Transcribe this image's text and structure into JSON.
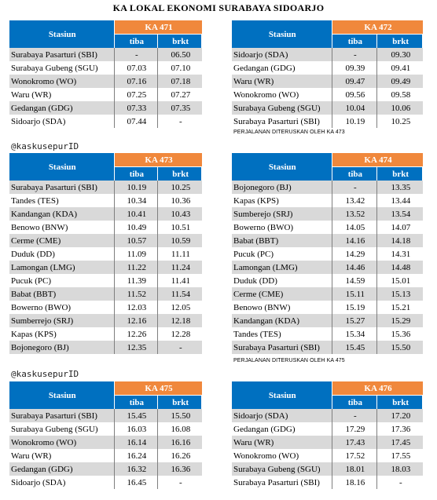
{
  "title": "KA LOKAL EKONOMI SURABAYA SIDOARJO",
  "watermarks": [
    "@kaskusepurID",
    "@kaskusepurID"
  ],
  "tables": [
    {
      "train": "KA 471",
      "station_header": "Stasiun",
      "arr_header": "tiba",
      "dep_header": "brkt",
      "rows": [
        {
          "station": "Surabaya Pasarturi (SBI)",
          "arr": "-",
          "dep": "06.50"
        },
        {
          "station": "Surabaya Gubeng (SGU)",
          "arr": "07.03",
          "dep": "07.10"
        },
        {
          "station": "Wonokromo (WO)",
          "arr": "07.16",
          "dep": "07.18"
        },
        {
          "station": "Waru (WR)",
          "arr": "07.25",
          "dep": "07.27"
        },
        {
          "station": "Gedangan (GDG)",
          "arr": "07.33",
          "dep": "07.35"
        },
        {
          "station": "Sidoarjo (SDA)",
          "arr": "07.44",
          "dep": "-"
        }
      ]
    },
    {
      "train": "KA 472",
      "station_header": "Stasiun",
      "arr_header": "tiba",
      "dep_header": "brkt",
      "rows": [
        {
          "station": "Sidoarjo (SDA)",
          "arr": "-",
          "dep": "09.30"
        },
        {
          "station": "Gedangan (GDG)",
          "arr": "09.39",
          "dep": "09.41"
        },
        {
          "station": "Waru (WR)",
          "arr": "09.47",
          "dep": "09.49"
        },
        {
          "station": "Wonokromo (WO)",
          "arr": "09.56",
          "dep": "09.58"
        },
        {
          "station": "Surabaya Gubeng (SGU)",
          "arr": "10.04",
          "dep": "10.06"
        },
        {
          "station": "Surabaya Pasarturi (SBI)",
          "arr": "10.19",
          "dep": "10.25"
        }
      ],
      "note": "PERJALANAN DITERUSKAN OLEH KA 473"
    },
    {
      "train": "KA 473",
      "station_header": "Stasiun",
      "arr_header": "tiba",
      "dep_header": "brkt",
      "rows": [
        {
          "station": "Surabaya Pasarturi (SBI)",
          "arr": "10.19",
          "dep": "10.25"
        },
        {
          "station": "Tandes (TES)",
          "arr": "10.34",
          "dep": "10.36"
        },
        {
          "station": "Kandangan (KDA)",
          "arr": "10.41",
          "dep": "10.43"
        },
        {
          "station": "Benowo (BNW)",
          "arr": "10.49",
          "dep": "10.51"
        },
        {
          "station": "Cerme (CME)",
          "arr": "10.57",
          "dep": "10.59"
        },
        {
          "station": "Duduk (DD)",
          "arr": "11.09",
          "dep": "11.11"
        },
        {
          "station": "Lamongan (LMG)",
          "arr": "11.22",
          "dep": "11.24"
        },
        {
          "station": "Pucuk (PC)",
          "arr": "11.39",
          "dep": "11.41"
        },
        {
          "station": "Babat (BBT)",
          "arr": "11.52",
          "dep": "11.54"
        },
        {
          "station": "Bowerno (BWO)",
          "arr": "12.03",
          "dep": "12.05"
        },
        {
          "station": "Sumberrejo (SRJ)",
          "arr": "12.16",
          "dep": "12.18"
        },
        {
          "station": "Kapas (KPS)",
          "arr": "12.26",
          "dep": "12.28"
        },
        {
          "station": "Bojonegoro (BJ)",
          "arr": "12.35",
          "dep": "-"
        }
      ]
    },
    {
      "train": "KA 474",
      "station_header": "Stasiun",
      "arr_header": "tiba",
      "dep_header": "brkt",
      "rows": [
        {
          "station": "Bojonegoro (BJ)",
          "arr": "-",
          "dep": "13.35"
        },
        {
          "station": "Kapas (KPS)",
          "arr": "13.42",
          "dep": "13.44"
        },
        {
          "station": "Sumberejo (SRJ)",
          "arr": "13.52",
          "dep": "13.54"
        },
        {
          "station": "Bowerno (BWO)",
          "arr": "14.05",
          "dep": "14.07"
        },
        {
          "station": "Babat (BBT)",
          "arr": "14.16",
          "dep": "14.18"
        },
        {
          "station": "Pucuk (PC)",
          "arr": "14.29",
          "dep": "14.31"
        },
        {
          "station": "Lamongan (LMG)",
          "arr": "14.46",
          "dep": "14.48"
        },
        {
          "station": "Duduk (DD)",
          "arr": "14.59",
          "dep": "15.01"
        },
        {
          "station": "Cerme (CME)",
          "arr": "15.11",
          "dep": "15.13"
        },
        {
          "station": "Benowo (BNW)",
          "arr": "15.19",
          "dep": "15.21"
        },
        {
          "station": "Kandangan (KDA)",
          "arr": "15.27",
          "dep": "15.29"
        },
        {
          "station": "Tandes (TES)",
          "arr": "15.34",
          "dep": "15.36"
        },
        {
          "station": "Surabaya Pasarturi (SBI)",
          "arr": "15.45",
          "dep": "15.50"
        }
      ],
      "note": "PERJALANAN DITERUSKAN OLEH KA 475"
    },
    {
      "train": "KA 475",
      "station_header": "Stasiun",
      "arr_header": "tiba",
      "dep_header": "brkt",
      "rows": [
        {
          "station": "Surabaya Pasarturi (SBI)",
          "arr": "15.45",
          "dep": "15.50"
        },
        {
          "station": "Surabaya Gubeng (SGU)",
          "arr": "16.03",
          "dep": "16.08"
        },
        {
          "station": "Wonokromo (WO)",
          "arr": "16.14",
          "dep": "16.16"
        },
        {
          "station": "Waru (WR)",
          "arr": "16.24",
          "dep": "16.26"
        },
        {
          "station": "Gedangan (GDG)",
          "arr": "16.32",
          "dep": "16.36"
        },
        {
          "station": "Sidoarjo (SDA)",
          "arr": "16.45",
          "dep": "-"
        }
      ]
    },
    {
      "train": "KA 476",
      "station_header": "Stasiun",
      "arr_header": "tiba",
      "dep_header": "brkt",
      "rows": [
        {
          "station": "Sidoarjo (SDA)",
          "arr": "-",
          "dep": "17.20"
        },
        {
          "station": "Gedangan (GDG)",
          "arr": "17.29",
          "dep": "17.36"
        },
        {
          "station": "Waru (WR)",
          "arr": "17.43",
          "dep": "17.45"
        },
        {
          "station": "Wonokromo (WO)",
          "arr": "17.52",
          "dep": "17.55"
        },
        {
          "station": "Surabaya Gubeng (SGU)",
          "arr": "18.01",
          "dep": "18.03"
        },
        {
          "station": "Surabaya Pasarturi (SBI)",
          "arr": "18.16",
          "dep": "-"
        }
      ]
    }
  ]
}
